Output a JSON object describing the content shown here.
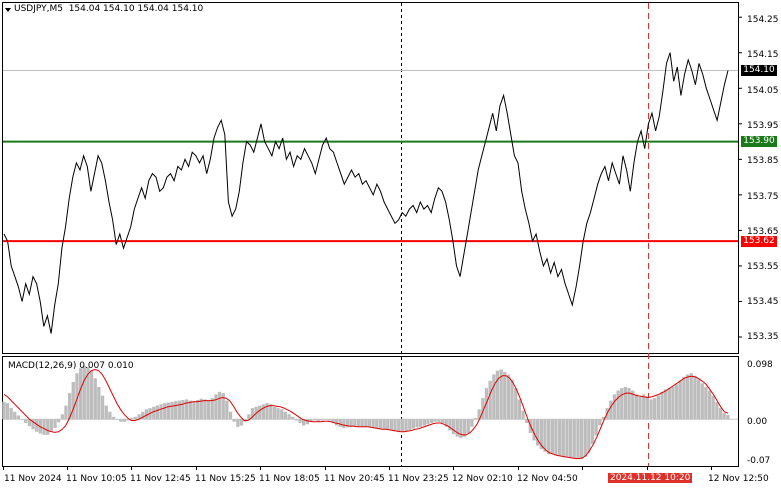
{
  "header": {
    "symbol_line": "USDJPY,M5",
    "ohlc": "154.04 154.10 154.04 154.10"
  },
  "macd": {
    "label": "MACD(12,26,9)",
    "values": "0.007 0.010",
    "scale_top": "0.098",
    "scale_zero": "0.00",
    "scale_bottom": "-0.07"
  },
  "price_axis": {
    "ticks": [
      "154.25",
      "154.15",
      "154.05",
      "153.95",
      "153.85",
      "153.75",
      "153.65",
      "153.55",
      "153.45",
      "153.35"
    ]
  },
  "levels": [
    {
      "price_label": "153.90",
      "color": "#1a7a1a"
    },
    {
      "price_label": "153.62",
      "color": "#ff0000"
    }
  ],
  "current_price": {
    "label": "154.10",
    "color": "#000000"
  },
  "time_axis": {
    "ticks": [
      "11 Nov 2024",
      "11 Nov 10:05",
      "11 Nov 12:45",
      "11 Nov 15:25",
      "11 Nov 18:05",
      "11 Nov 20:45",
      "11 Nov 23:25",
      "12 Nov 02:10",
      "12 Nov 04:50",
      "12 Nov 12:50"
    ],
    "highlight_label": "2024.11.12 10:20",
    "highlight_suffix": "10",
    "highlight_color": "#e0302a"
  },
  "chart_data": {
    "type": "line",
    "price": {
      "ylim": [
        153.305,
        154.29
      ],
      "series": [
        {
          "values": [
            153.64,
            153.62,
            153.55,
            153.52,
            153.49,
            153.45,
            153.5,
            153.47,
            153.52,
            153.5,
            153.45,
            153.38,
            153.41,
            153.36,
            153.44,
            153.5,
            153.6,
            153.66,
            153.74,
            153.8,
            153.84,
            153.82,
            153.86,
            153.83,
            153.76,
            153.81,
            153.86,
            153.84,
            153.79,
            153.73,
            153.68,
            153.61,
            153.64,
            153.6,
            153.63,
            153.66,
            153.71,
            153.74,
            153.77,
            153.74,
            153.79,
            153.81,
            153.8,
            153.76,
            153.77,
            153.8,
            153.81,
            153.79,
            153.83,
            153.82,
            153.85,
            153.83,
            153.87,
            153.86,
            153.84,
            153.86,
            153.81,
            153.85,
            153.91,
            153.94,
            153.96,
            153.92,
            153.73,
            153.69,
            153.71,
            153.76,
            153.84,
            153.9,
            153.89,
            153.87,
            153.91,
            153.95,
            153.9,
            153.88,
            153.86,
            153.9,
            153.88,
            153.91,
            153.85,
            153.87,
            153.83,
            153.86,
            153.85,
            153.88,
            153.86,
            153.84,
            153.81,
            153.85,
            153.89,
            153.91,
            153.88,
            153.87,
            153.84,
            153.81,
            153.78,
            153.8,
            153.82,
            153.8,
            153.81,
            153.78,
            153.79,
            153.77,
            153.75,
            153.78,
            153.76,
            153.73,
            153.71,
            153.69,
            153.67,
            153.68,
            153.7,
            153.69,
            153.71,
            153.72,
            153.7,
            153.73,
            153.71,
            153.72,
            153.7,
            153.74,
            153.77,
            153.76,
            153.73,
            153.68,
            153.62,
            153.55,
            153.52,
            153.58,
            153.64,
            153.7,
            153.76,
            153.82,
            153.86,
            153.9,
            153.94,
            153.98,
            153.93,
            154.0,
            154.03,
            153.98,
            153.92,
            153.86,
            153.84,
            153.76,
            153.71,
            153.67,
            153.62,
            153.64,
            153.59,
            153.55,
            153.57,
            153.53,
            153.56,
            153.52,
            153.54,
            153.5,
            153.47,
            153.44,
            153.49,
            153.55,
            153.62,
            153.67,
            153.7,
            153.74,
            153.78,
            153.81,
            153.83,
            153.79,
            153.84,
            153.81,
            153.78,
            153.86,
            153.82,
            153.76,
            153.84,
            153.9,
            153.93,
            153.88,
            153.95,
            153.98,
            153.93,
            153.97,
            154.04,
            154.12,
            154.15,
            154.07,
            154.11,
            154.03,
            154.09,
            154.13,
            154.1,
            154.06,
            154.12,
            154.09,
            154.05,
            154.02,
            153.99,
            153.96,
            154.01,
            154.06,
            154.1
          ]
        }
      ]
    },
    "macd": {
      "ylim": [
        -0.075,
        0.1
      ],
      "histogram": [
        0.028,
        0.026,
        0.018,
        0.012,
        0.006,
        0.0,
        -0.006,
        -0.011,
        -0.016,
        -0.02,
        -0.023,
        -0.025,
        -0.025,
        -0.02,
        -0.014,
        -0.005,
        0.008,
        0.022,
        0.042,
        0.06,
        0.074,
        0.082,
        0.086,
        0.084,
        0.078,
        0.066,
        0.052,
        0.038,
        0.022,
        0.012,
        0.004,
        0.0,
        -0.004,
        -0.004,
        -0.002,
        0.002,
        0.004,
        0.008,
        0.012,
        0.016,
        0.018,
        0.02,
        0.022,
        0.024,
        0.026,
        0.027,
        0.028,
        0.029,
        0.03,
        0.031,
        0.032,
        0.03,
        0.029,
        0.031,
        0.033,
        0.032,
        0.03,
        0.034,
        0.04,
        0.044,
        0.042,
        0.03,
        0.012,
        -0.004,
        -0.012,
        -0.01,
        -0.004,
        0.008,
        0.018,
        0.02,
        0.022,
        0.024,
        0.026,
        0.024,
        0.02,
        0.018,
        0.016,
        0.012,
        0.008,
        0.004,
        -0.002,
        -0.006,
        -0.01,
        -0.008,
        -0.004,
        -0.002,
        -0.004,
        -0.002,
        0.0,
        -0.002,
        -0.006,
        -0.01,
        -0.012,
        -0.014,
        -0.013,
        -0.012,
        -0.011,
        -0.012,
        -0.012,
        -0.012,
        -0.013,
        -0.014,
        -0.015,
        -0.016,
        -0.016,
        -0.017,
        -0.018,
        -0.019,
        -0.02,
        -0.02,
        -0.019,
        -0.017,
        -0.015,
        -0.013,
        -0.012,
        -0.01,
        -0.008,
        -0.006,
        -0.004,
        -0.004,
        -0.006,
        -0.012,
        -0.018,
        -0.024,
        -0.028,
        -0.03,
        -0.028,
        -0.022,
        -0.012,
        0.002,
        0.016,
        0.034,
        0.05,
        0.062,
        0.072,
        0.078,
        0.08,
        0.076,
        0.072,
        0.064,
        0.05,
        0.032,
        0.014,
        -0.006,
        -0.022,
        -0.034,
        -0.042,
        -0.048,
        -0.052,
        -0.056,
        -0.056,
        -0.058,
        -0.058,
        -0.06,
        -0.06,
        -0.062,
        -0.062,
        -0.064,
        -0.064,
        -0.06,
        -0.054,
        -0.04,
        -0.026,
        -0.01,
        0.004,
        0.018,
        0.03,
        0.04,
        0.046,
        0.05,
        0.052,
        0.05,
        0.046,
        0.04,
        0.036,
        0.04,
        0.036,
        0.032,
        0.034,
        0.038,
        0.044,
        0.048,
        0.05,
        0.052,
        0.056,
        0.062,
        0.068,
        0.072,
        0.074,
        0.07,
        0.064,
        0.058,
        0.052,
        0.046,
        0.038,
        0.028,
        0.018,
        0.01,
        0.007
      ],
      "signal": [
        0.04,
        0.036,
        0.03,
        0.024,
        0.018,
        0.012,
        0.006,
        0.0,
        -0.004,
        -0.008,
        -0.012,
        -0.015,
        -0.018,
        -0.02,
        -0.021,
        -0.02,
        -0.016,
        -0.01,
        0.002,
        0.016,
        0.032,
        0.048,
        0.062,
        0.072,
        0.078,
        0.08,
        0.078,
        0.072,
        0.062,
        0.05,
        0.038,
        0.026,
        0.016,
        0.008,
        0.002,
        -0.002,
        -0.002,
        0.0,
        0.003,
        0.006,
        0.009,
        0.012,
        0.014,
        0.016,
        0.018,
        0.02,
        0.021,
        0.022,
        0.023,
        0.024,
        0.026,
        0.027,
        0.028,
        0.028,
        0.029,
        0.03,
        0.03,
        0.03,
        0.031,
        0.033,
        0.035,
        0.034,
        0.03,
        0.022,
        0.012,
        0.004,
        -0.002,
        -0.002,
        0.002,
        0.008,
        0.013,
        0.017,
        0.02,
        0.022,
        0.022,
        0.021,
        0.02,
        0.018,
        0.015,
        0.012,
        0.008,
        0.004,
        0.0,
        -0.002,
        -0.003,
        -0.004,
        -0.004,
        -0.004,
        -0.003,
        -0.003,
        -0.004,
        -0.006,
        -0.007,
        -0.009,
        -0.01,
        -0.011,
        -0.011,
        -0.012,
        -0.012,
        -0.012,
        -0.012,
        -0.013,
        -0.014,
        -0.015,
        -0.016,
        -0.016,
        -0.017,
        -0.018,
        -0.019,
        -0.02,
        -0.02,
        -0.019,
        -0.018,
        -0.016,
        -0.015,
        -0.013,
        -0.011,
        -0.009,
        -0.007,
        -0.006,
        -0.006,
        -0.008,
        -0.011,
        -0.015,
        -0.019,
        -0.023,
        -0.025,
        -0.025,
        -0.022,
        -0.016,
        -0.008,
        0.004,
        0.018,
        0.032,
        0.046,
        0.058,
        0.066,
        0.07,
        0.07,
        0.066,
        0.058,
        0.046,
        0.032,
        0.016,
        0.0,
        -0.014,
        -0.026,
        -0.036,
        -0.044,
        -0.05,
        -0.054,
        -0.056,
        -0.058,
        -0.059,
        -0.06,
        -0.061,
        -0.062,
        -0.063,
        -0.063,
        -0.062,
        -0.058,
        -0.05,
        -0.04,
        -0.028,
        -0.014,
        0.0,
        0.012,
        0.022,
        0.03,
        0.036,
        0.04,
        0.042,
        0.042,
        0.04,
        0.038,
        0.037,
        0.036,
        0.035,
        0.036,
        0.038,
        0.04,
        0.043,
        0.046,
        0.05,
        0.054,
        0.058,
        0.062,
        0.066,
        0.068,
        0.069,
        0.068,
        0.065,
        0.061,
        0.056,
        0.048,
        0.04,
        0.03,
        0.02,
        0.012,
        0.01
      ]
    },
    "price_levels": [
      153.9,
      153.62
    ],
    "current_price": 154.1,
    "grid": false
  }
}
